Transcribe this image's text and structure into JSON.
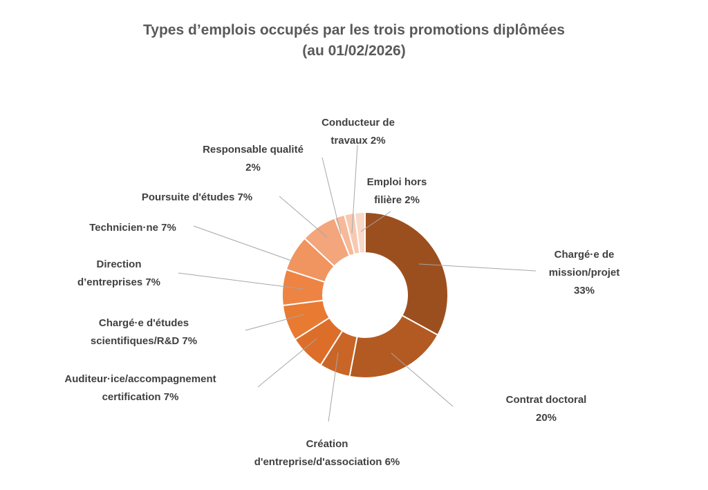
{
  "chart_data": {
    "type": "pie",
    "subtype": "donut",
    "title": "Types d’emplois occupés par les trois promotions diplômées",
    "subtitle": "(au 01/02/2026)",
    "slices": [
      {
        "label_lines": [
          "Chargé·e de",
          "mission/projet",
          "33%"
        ],
        "value": 33,
        "color": "#9C4F1E"
      },
      {
        "label_lines": [
          "Contrat doctoral",
          "20%"
        ],
        "value": 20,
        "color": "#B35A22"
      },
      {
        "label_lines": [
          "Création",
          "d'entreprise/d'association 6%"
        ],
        "value": 6,
        "color": "#C96527"
      },
      {
        "label_lines": [
          "Auditeur·ice/accompagnement",
          "certification 7%"
        ],
        "value": 7,
        "color": "#DC6E29"
      },
      {
        "label_lines": [
          "Chargé·e d'études",
          "scientifiques/R&D 7%"
        ],
        "value": 7,
        "color": "#E97A32"
      },
      {
        "label_lines": [
          "Direction",
          "d’entreprises 7%"
        ],
        "value": 7,
        "color": "#EE8443"
      },
      {
        "label_lines": [
          "Technicien·ne 7%"
        ],
        "value": 7,
        "color": "#F09460"
      },
      {
        "label_lines": [
          "Poursuite d'études 7%"
        ],
        "value": 7,
        "color": "#F3A57C"
      },
      {
        "label_lines": [
          "Responsable qualité",
          "2%"
        ],
        "value": 2,
        "color": "#F6B99A"
      },
      {
        "label_lines": [
          "Conducteur de",
          "travaux 2%"
        ],
        "value": 2,
        "color": "#F8C9B1"
      },
      {
        "label_lines": [
          "Emploi hors",
          "filière 2%"
        ],
        "value": 2,
        "color": "#FAD8C7"
      }
    ]
  }
}
